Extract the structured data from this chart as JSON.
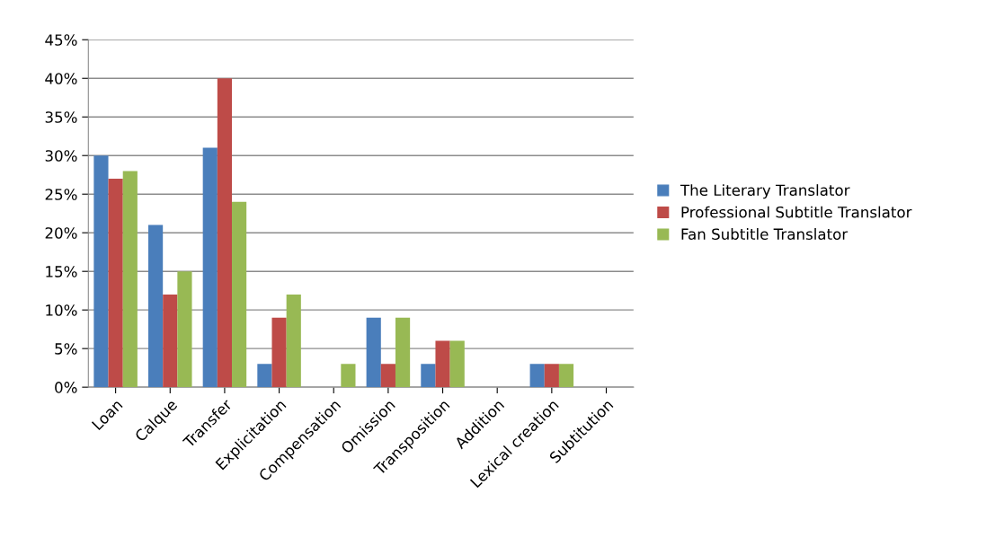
{
  "chart_data": {
    "type": "bar",
    "categories": [
      "Loan",
      "Calque",
      "Transfer",
      "Explicitation",
      "Compensation",
      "Omission",
      "Transposition",
      "Addition",
      "Lexical creation",
      "Subtitution"
    ],
    "series": [
      {
        "name": "The Literary Translator",
        "color": "#4a7ebb",
        "values": [
          30,
          21,
          31,
          3,
          0,
          9,
          3,
          0,
          3,
          0
        ]
      },
      {
        "name": "Professional Subtitle Translator",
        "color": "#be4b48",
        "values": [
          27,
          12,
          40,
          9,
          0,
          3,
          6,
          0,
          3,
          0
        ]
      },
      {
        "name": "Fan Subtitle Translator",
        "color": "#98b954",
        "values": [
          28,
          15,
          24,
          12,
          3,
          9,
          6,
          0,
          3,
          0
        ]
      }
    ],
    "ylim": [
      0,
      45
    ],
    "yticks": [
      {
        "value": 0,
        "label": "0%"
      },
      {
        "value": 5,
        "label": "5%"
      },
      {
        "value": 10,
        "label": "10%"
      },
      {
        "value": 15,
        "label": "15%"
      },
      {
        "value": 20,
        "label": "20%"
      },
      {
        "value": 25,
        "label": "25%"
      },
      {
        "value": 30,
        "label": "30%"
      },
      {
        "value": 35,
        "label": "35%"
      },
      {
        "value": 40,
        "label": "40%"
      },
      {
        "value": 45,
        "label": "45%"
      }
    ],
    "grid": "y",
    "legend": "right"
  }
}
